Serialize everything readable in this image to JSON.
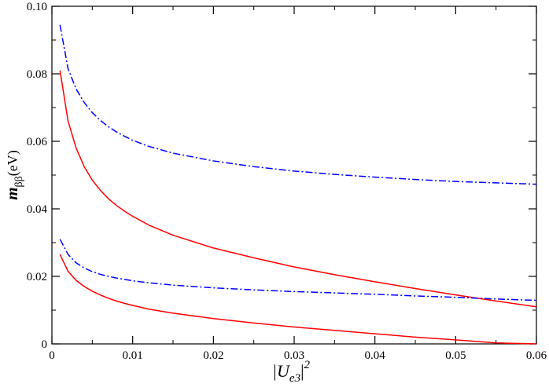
{
  "chart_data": {
    "type": "line",
    "title": "",
    "xlabel": {
      "base": "|U",
      "subscript": "e3",
      "close": "|",
      "superscript": "2"
    },
    "ylabel": {
      "base": "m",
      "subscript": "ββ",
      "unit": "(eV)"
    },
    "xlim": [
      0,
      0.06
    ],
    "ylim": [
      0,
      0.1
    ],
    "x_ticks": [
      0,
      0.01,
      0.02,
      0.03,
      0.04,
      0.05,
      0.06
    ],
    "x_tick_labels": [
      "0",
      "0.01",
      "0.02",
      "0.03",
      "0.04",
      "0.05",
      "0.06"
    ],
    "y_ticks": [
      0,
      0.02,
      0.04,
      0.06,
      0.08,
      0.1
    ],
    "y_tick_labels": [
      "0",
      "0.02",
      "0.04",
      "0.06",
      "0.08",
      "0.10"
    ],
    "y_minor_step": 0.01,
    "x_minor_step": 0.005,
    "grid": false,
    "legend": "none",
    "series": [
      {
        "color": "#0000ff",
        "style": "dash-dot",
        "x": [
          0.001,
          0.002,
          0.003,
          0.004,
          0.005,
          0.006,
          0.007,
          0.008,
          0.009,
          0.01,
          0.012,
          0.015,
          0.02,
          0.025,
          0.03,
          0.035,
          0.04,
          0.045,
          0.05,
          0.055,
          0.06
        ],
        "y": [
          0.0945,
          0.0815,
          0.0755,
          0.0715,
          0.0685,
          0.0662,
          0.0643,
          0.0628,
          0.0615,
          0.0603,
          0.0585,
          0.0565,
          0.0542,
          0.0525,
          0.0512,
          0.0502,
          0.0494,
          0.0487,
          0.0481,
          0.0477,
          0.0473
        ]
      },
      {
        "color": "#ff0000",
        "style": "solid",
        "x": [
          0.001,
          0.002,
          0.003,
          0.004,
          0.005,
          0.006,
          0.007,
          0.008,
          0.009,
          0.01,
          0.012,
          0.015,
          0.02,
          0.025,
          0.03,
          0.035,
          0.04,
          0.045,
          0.05,
          0.055,
          0.06
        ],
        "y": [
          0.081,
          0.066,
          0.058,
          0.0525,
          0.0485,
          0.0455,
          0.043,
          0.041,
          0.0393,
          0.0378,
          0.0352,
          0.0322,
          0.0284,
          0.0255,
          0.0228,
          0.0205,
          0.0184,
          0.0164,
          0.0145,
          0.0127,
          0.011
        ]
      },
      {
        "color": "#0000ff",
        "style": "dash-dot",
        "x": [
          0.001,
          0.002,
          0.003,
          0.004,
          0.005,
          0.006,
          0.007,
          0.008,
          0.009,
          0.01,
          0.012,
          0.015,
          0.02,
          0.025,
          0.03,
          0.035,
          0.04,
          0.045,
          0.05,
          0.055,
          0.06
        ],
        "y": [
          0.031,
          0.0265,
          0.024,
          0.0225,
          0.0214,
          0.0206,
          0.02,
          0.0195,
          0.0191,
          0.0187,
          0.0181,
          0.0174,
          0.0166,
          0.016,
          0.0155,
          0.0151,
          0.0147,
          0.0142,
          0.0138,
          0.0133,
          0.0129
        ]
      },
      {
        "color": "#ff0000",
        "style": "solid",
        "x": [
          0.001,
          0.002,
          0.003,
          0.004,
          0.005,
          0.006,
          0.007,
          0.008,
          0.009,
          0.01,
          0.012,
          0.015,
          0.02,
          0.025,
          0.03,
          0.035,
          0.04,
          0.045,
          0.05,
          0.055,
          0.06
        ],
        "y": [
          0.0265,
          0.0215,
          0.0188,
          0.017,
          0.0156,
          0.0145,
          0.0135,
          0.0127,
          0.012,
          0.0114,
          0.0103,
          0.0091,
          0.0075,
          0.0062,
          0.005,
          0.004,
          0.003,
          0.002,
          0.0012,
          0.0003,
          0
        ]
      }
    ]
  }
}
